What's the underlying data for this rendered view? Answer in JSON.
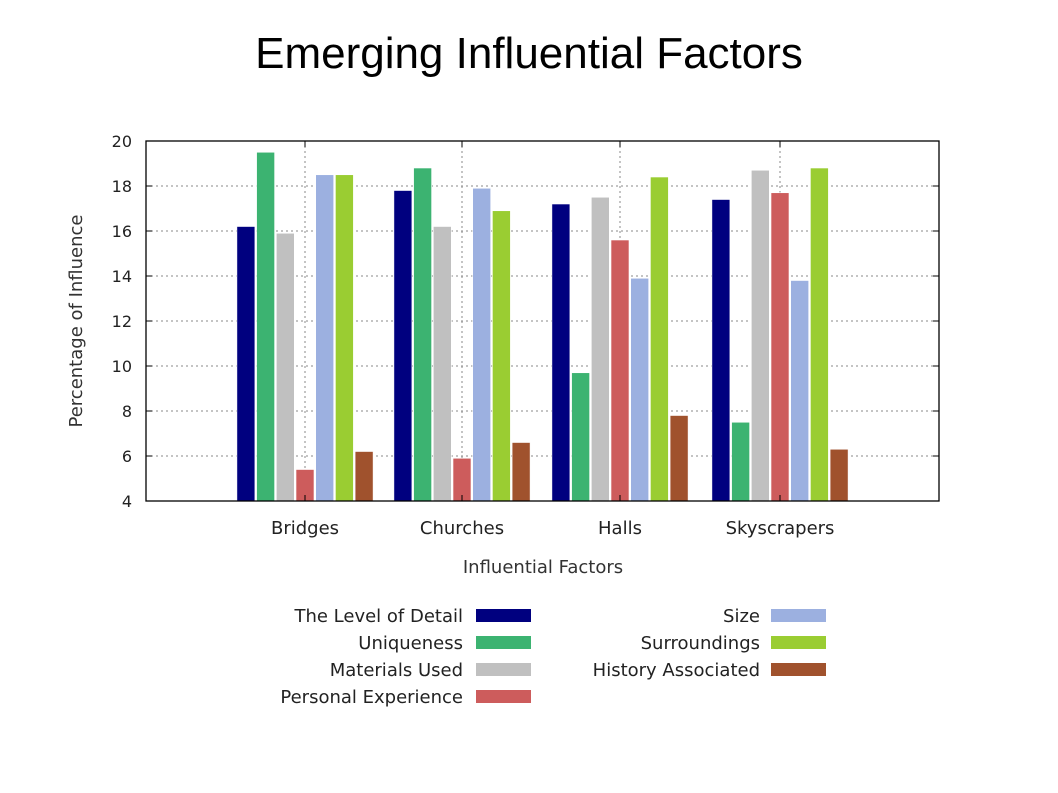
{
  "slide": {
    "title": "Emerging Influential Factors"
  },
  "chart_data": {
    "type": "bar",
    "title": "",
    "xlabel": "Influential Factors",
    "ylabel": "Percentage of Influence",
    "ylim": [
      4,
      20
    ],
    "yticks": [
      4,
      6,
      8,
      10,
      12,
      14,
      16,
      18,
      20
    ],
    "grid": true,
    "legend_position": "bottom",
    "categories": [
      "Bridges",
      "Churches",
      "Halls",
      "Skyscrapers"
    ],
    "series": [
      {
        "name": "The Level of Detail",
        "color": "#00007f",
        "values": [
          16.2,
          17.8,
          17.2,
          17.4
        ]
      },
      {
        "name": "Uniqueness",
        "color": "#3cb371",
        "values": [
          19.5,
          18.8,
          9.7,
          7.5
        ]
      },
      {
        "name": "Materials Used",
        "color": "#c0c0c0",
        "values": [
          15.9,
          16.2,
          17.5,
          18.7
        ]
      },
      {
        "name": "Personal Experience",
        "color": "#cd5c5c",
        "values": [
          5.4,
          5.9,
          15.6,
          17.7
        ]
      },
      {
        "name": "Size",
        "color": "#9cb0e0",
        "values": [
          18.5,
          17.9,
          13.9,
          13.8
        ]
      },
      {
        "name": "Surroundings",
        "color": "#9acd32",
        "values": [
          18.5,
          16.9,
          18.4,
          18.8
        ]
      },
      {
        "name": "History Associated",
        "color": "#a0522d",
        "values": [
          6.2,
          6.6,
          7.8,
          6.3
        ]
      }
    ]
  }
}
